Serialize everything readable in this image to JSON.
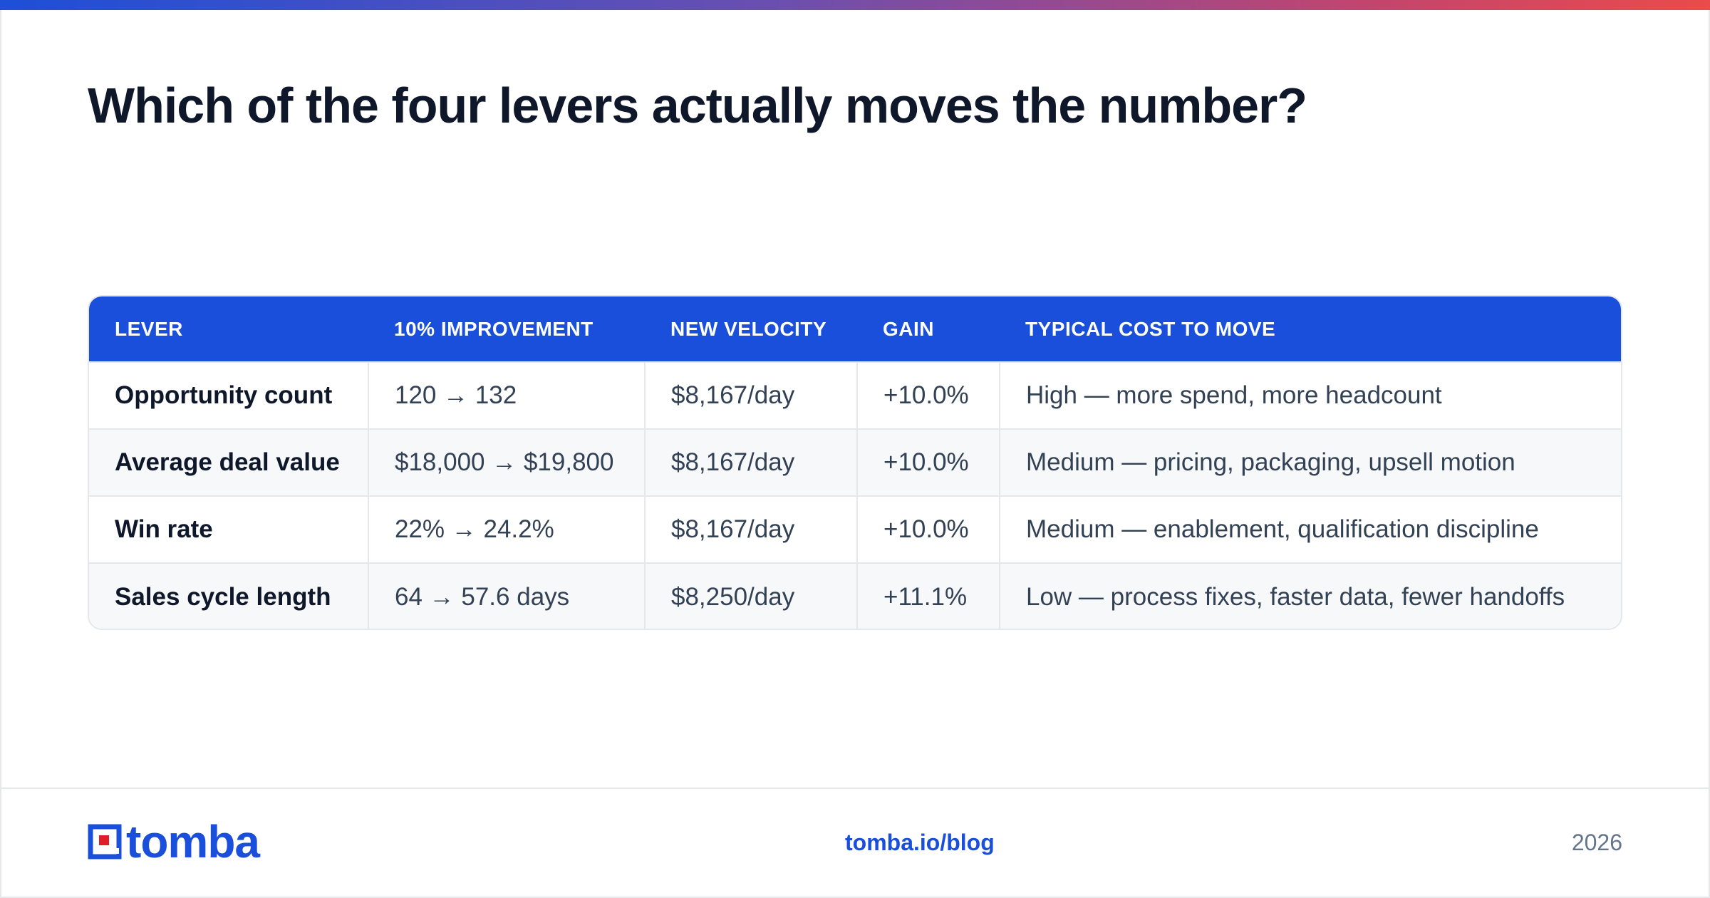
{
  "title": "Which of the four levers actually moves the number?",
  "colors": {
    "accent": "#1a4fdc",
    "title": "#0f172a",
    "body": "#334155",
    "muted": "#64748b",
    "logo_red": "#e11d2a"
  },
  "table": {
    "headers": [
      "LEVER",
      "10% IMPROVEMENT",
      "NEW VELOCITY",
      "GAIN",
      "TYPICAL COST TO MOVE"
    ],
    "rows": [
      [
        "Opportunity count",
        "120 → 132",
        "$8,167/day",
        "+10.0%",
        "High — more spend, more headcount"
      ],
      [
        "Average deal value",
        "$18,000 → $19,800",
        "$8,167/day",
        "+10.0%",
        "Medium — pricing, packaging, upsell motion"
      ],
      [
        "Win rate",
        "22% → 24.2%",
        "$8,167/day",
        "+10.0%",
        "Medium — enablement, qualification discipline"
      ],
      [
        "Sales cycle length",
        "64 → 57.6 days",
        "$8,250/day",
        "+11.1%",
        "Low — process fixes, faster data, fewer handoffs"
      ]
    ]
  },
  "footer": {
    "logo_text": "tomba",
    "link": "tomba.io/blog",
    "year": "2026"
  }
}
